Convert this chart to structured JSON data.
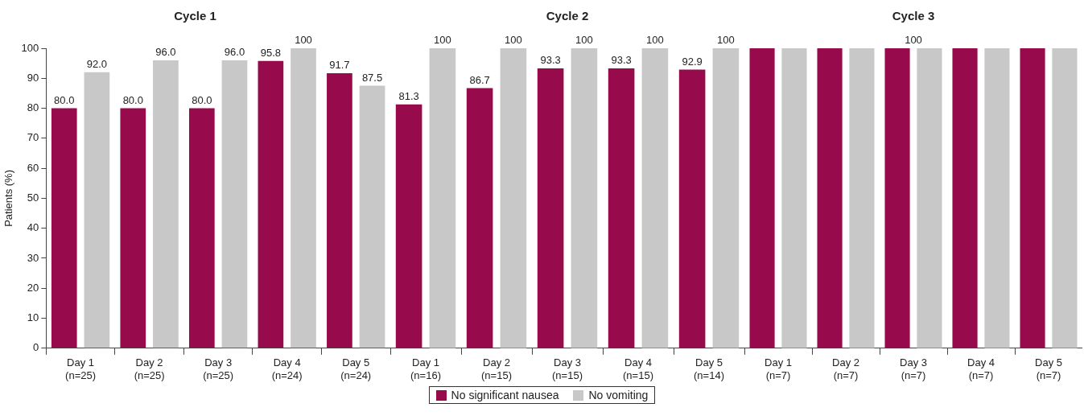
{
  "chart_data": [
    {
      "type": "bar",
      "title": "Cycle 1",
      "ylabel": "Patients (%)",
      "categories": [
        "Day 1\n(n=25)",
        "Day 2\n(n=25)",
        "Day 3\n(n=25)",
        "Day 4\n(n=24)",
        "Day 5\n(n=24)"
      ],
      "ylim": [
        0,
        100
      ],
      "yticks": [
        0,
        10,
        20,
        30,
        40,
        50,
        60,
        70,
        80,
        90,
        100
      ],
      "grid": false,
      "legend": false,
      "series": [
        {
          "color": "#970a4b",
          "values": [
            80.0,
            80.0,
            80.0,
            95.8,
            91.7
          ],
          "value_labels": [
            "80.0",
            "80.0",
            "80.0",
            "95.8",
            "91.7"
          ]
        },
        {
          "color": "#c8c8c8",
          "values": [
            92.0,
            96.0,
            96.0,
            100,
            87.5
          ],
          "value_labels": [
            "92.0",
            "96.0",
            "96.0",
            "100",
            "87.5"
          ]
        }
      ]
    },
    {
      "type": "bar",
      "title": "Cycle 2",
      "categories": [
        "Day 1\n(n=16)",
        "Day 2\n(n=15)",
        "Day 3\n(n=15)",
        "Day 4\n(n=15)",
        "Day 5\n(n=14)"
      ],
      "ylim": [
        0,
        100
      ],
      "tick_labels": "x",
      "grid": false,
      "legend": "bottom",
      "series": [
        {
          "name": "No significant nausea",
          "color": "#970a4b",
          "values": [
            81.3,
            86.7,
            93.3,
            93.3,
            92.9
          ],
          "value_labels": [
            "81.3",
            "86.7",
            "93.3",
            "93.3",
            "92.9"
          ]
        },
        {
          "name": "No vomiting",
          "color": "#c8c8c8",
          "values": [
            100,
            100,
            100,
            100,
            100
          ],
          "value_labels": [
            "100",
            "100",
            "100",
            "100",
            "100"
          ]
        }
      ]
    },
    {
      "type": "bar",
      "title": "Cycle 3",
      "categories": [
        "Day 1\n(n=7)",
        "Day 2\n(n=7)",
        "Day 3\n(n=7)",
        "Day 4\n(n=7)",
        "Day 5\n(n=7)"
      ],
      "ylim": [
        0,
        100
      ],
      "tick_labels": "x",
      "grid": false,
      "legend": false,
      "annotations": [
        {
          "text": "100",
          "x": "Day 3\n(n=7)",
          "y": 100
        }
      ],
      "series": [
        {
          "color": "#970a4b",
          "values": [
            100,
            100,
            100,
            100,
            100
          ]
        },
        {
          "color": "#c8c8c8",
          "values": [
            100,
            100,
            100,
            100,
            100
          ]
        }
      ]
    }
  ]
}
